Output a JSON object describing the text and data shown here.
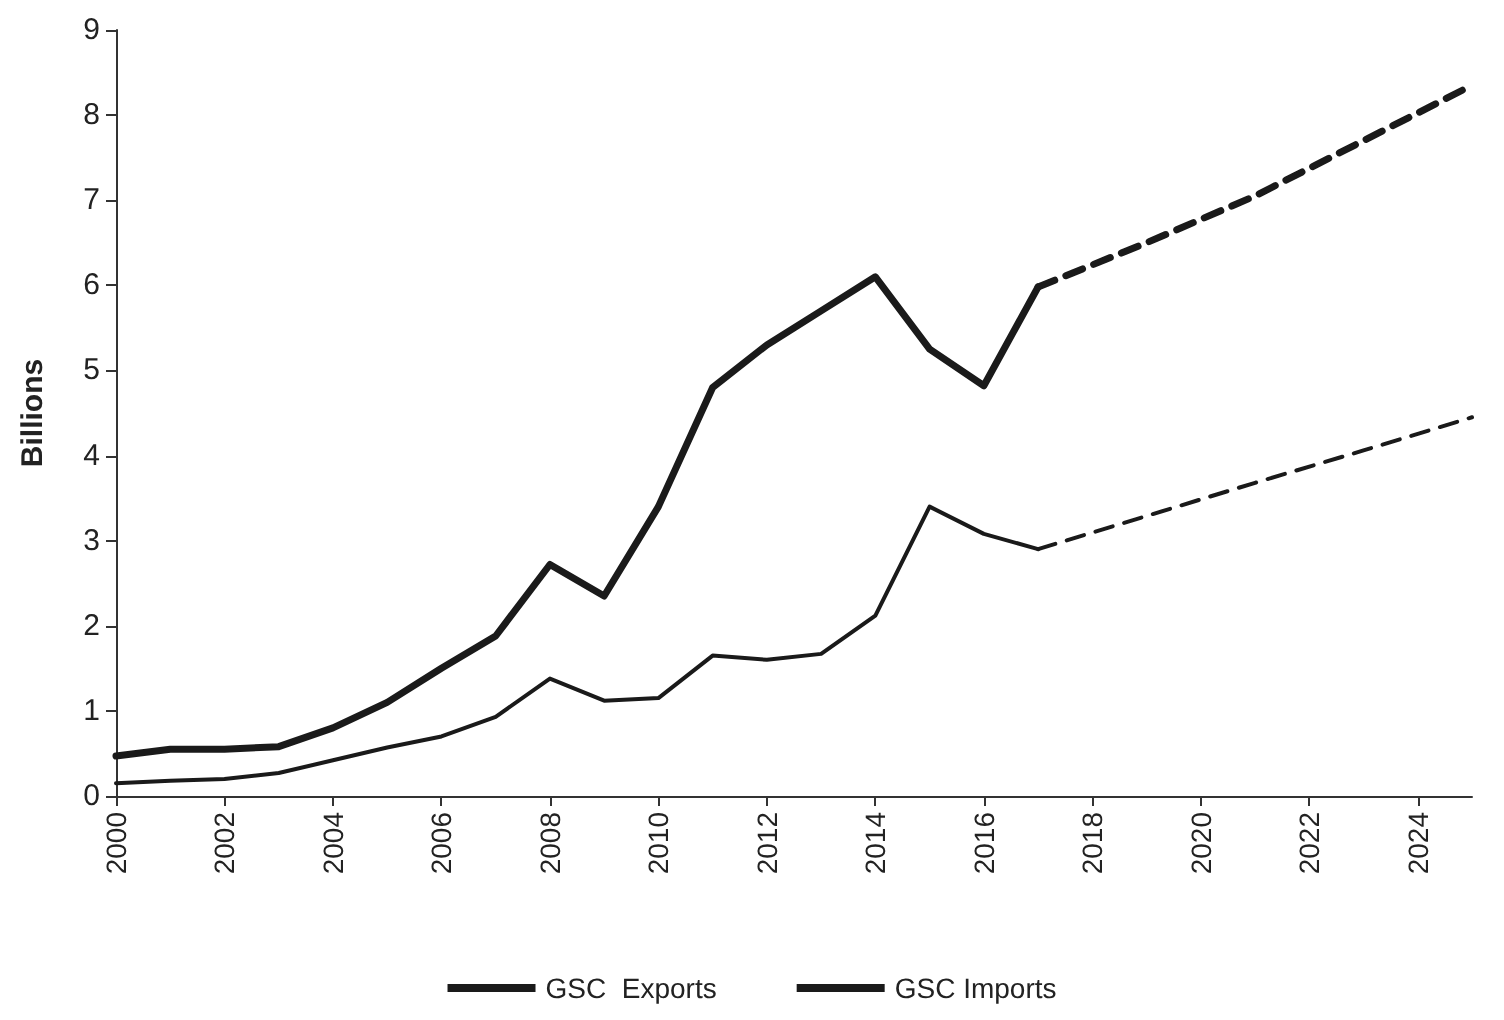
{
  "chart_data": {
    "type": "line",
    "ylabel": "Billions",
    "xlim": [
      2000,
      2025
    ],
    "xticks": [
      2000,
      2002,
      2004,
      2006,
      2008,
      2010,
      2012,
      2014,
      2016,
      2018,
      2020,
      2022,
      2024
    ],
    "ylim": [
      0,
      9
    ],
    "yticks": [
      0,
      1,
      2,
      3,
      4,
      5,
      6,
      7,
      8,
      9
    ],
    "grid": false,
    "legend": "bottom",
    "marker": "none",
    "series": [
      {
        "name": "GSC  Exports",
        "color": "#1a1a1a",
        "line_style": "solid",
        "x": [
          2000,
          2001,
          2002,
          2003,
          2004,
          2005,
          2006,
          2007,
          2008,
          2009,
          2010,
          2011,
          2012,
          2013,
          2014,
          2015,
          2016,
          2017
        ],
        "values": [
          0.47,
          0.55,
          0.55,
          0.58,
          0.8,
          1.1,
          1.5,
          1.88,
          2.72,
          2.35,
          3.4,
          4.8,
          5.3,
          5.7,
          6.1,
          5.25,
          4.82,
          5.98
        ]
      },
      {
        "name": "GSC Imports",
        "color": "#1a1a1a",
        "line_style": "solid",
        "x": [
          2000,
          2001,
          2002,
          2003,
          2004,
          2005,
          2006,
          2007,
          2008,
          2009,
          2010,
          2011,
          2012,
          2013,
          2014,
          2015,
          2016,
          2017
        ],
        "values": [
          0.15,
          0.18,
          0.2,
          0.27,
          0.42,
          0.57,
          0.7,
          0.93,
          1.38,
          1.12,
          1.15,
          1.65,
          1.6,
          1.67,
          2.12,
          3.4,
          3.08,
          2.9
        ]
      },
      {
        "color": "#1a1a1a",
        "line_style": "dashed",
        "x": [
          2017,
          2019,
          2021,
          2023,
          2025
        ],
        "values": [
          5.98,
          6.5,
          7.05,
          7.7,
          8.35
        ]
      },
      {
        "color": "#1a1a1a",
        "line_style": "dashed",
        "x": [
          2017,
          2019,
          2021,
          2023,
          2025
        ],
        "values": [
          2.9,
          3.29,
          3.68,
          4.06,
          4.45
        ]
      }
    ]
  }
}
